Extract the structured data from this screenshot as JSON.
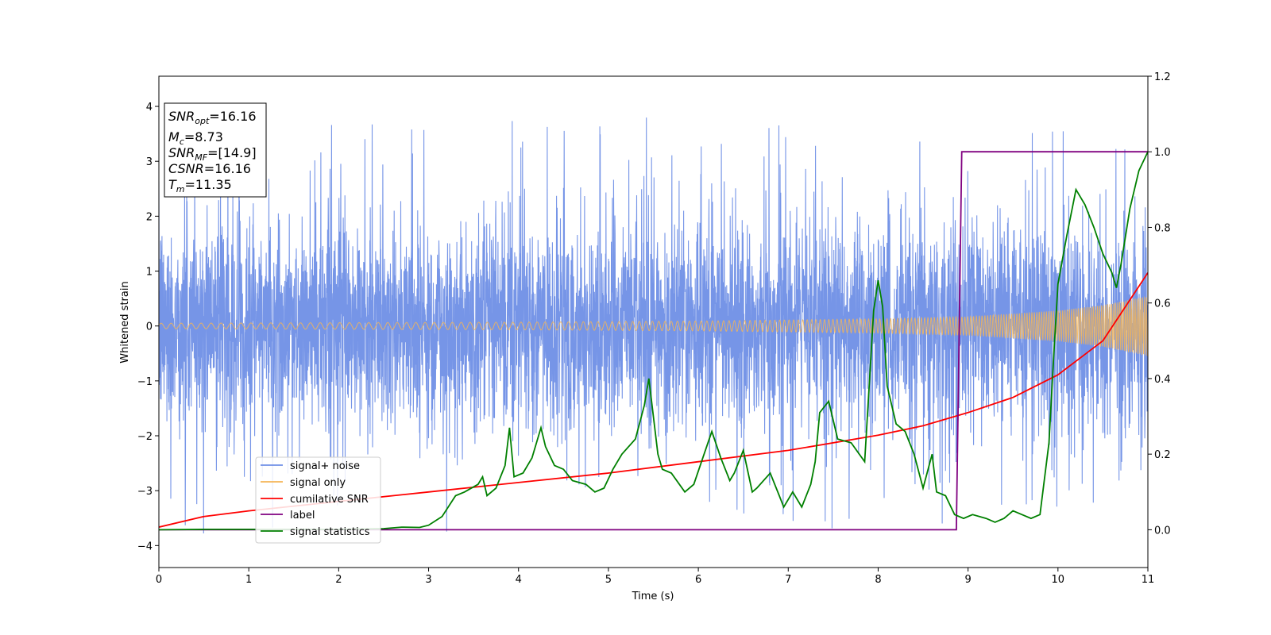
{
  "chart_data": {
    "type": "line",
    "xlabel": "Time (s)",
    "ylabel": "Whitened strain",
    "xlim": [
      0,
      11
    ],
    "ylim_left": [
      -4.4,
      4.55
    ],
    "ylim_right": [
      -0.1,
      1.2
    ],
    "x_ticks": [
      0,
      1,
      2,
      3,
      4,
      5,
      6,
      7,
      8,
      9,
      10,
      11
    ],
    "y_left_ticks": [
      -4,
      -3,
      -2,
      -1,
      0,
      1,
      2,
      3,
      4
    ],
    "y_right_ticks": [
      0.0,
      0.2,
      0.4,
      0.6,
      0.8,
      1.0,
      1.2
    ],
    "legend_position": "lower-left",
    "info_box": {
      "line1": {
        "sym": "SNR",
        "sub": "opt",
        "value": "=16.16"
      },
      "line2": {
        "sym": "M",
        "sub": "c",
        "value": "=8.73"
      },
      "line3": {
        "sym": "SNR",
        "sub": "MF",
        "value": "=[14.9]"
      },
      "line4": {
        "sym": "CSNR",
        "sub": "",
        "value": "=16.16"
      },
      "line5": {
        "sym": "T",
        "sub": "m",
        "value": "=11.35"
      }
    },
    "series": [
      {
        "name": "signal+ noise",
        "axis": "left",
        "color": "#6f8fe6",
        "description_stats": {
          "band_low": -1.6,
          "band_high": 1.6,
          "peak_max": 4.2,
          "peak_min": -3.95
        }
      },
      {
        "name": "signal only",
        "axis": "left",
        "color": "#f5b556",
        "envelope": {
          "x": [
            0,
            2,
            4,
            6,
            8,
            9,
            10,
            10.5,
            11
          ],
          "amp": [
            0.05,
            0.06,
            0.07,
            0.09,
            0.13,
            0.17,
            0.28,
            0.38,
            0.55
          ]
        }
      },
      {
        "name": "cumilative SNR",
        "axis": "right",
        "color": "#ff0000",
        "x": [
          0,
          0.5,
          1,
          2,
          3,
          4,
          5,
          6,
          7,
          8,
          8.5,
          9,
          9.5,
          10,
          10.5,
          11
        ],
        "y": [
          0.007,
          0.035,
          0.05,
          0.075,
          0.1,
          0.125,
          0.15,
          0.18,
          0.21,
          0.25,
          0.275,
          0.31,
          0.35,
          0.41,
          0.5,
          0.68
        ]
      },
      {
        "name": "label",
        "axis": "right",
        "color": "#800080",
        "x": [
          0,
          8.87,
          8.93,
          11
        ],
        "y": [
          0,
          0,
          1,
          1
        ]
      },
      {
        "name": "signal statistics",
        "axis": "right",
        "color": "#008000",
        "x": [
          0,
          0.5,
          1,
          1.5,
          2,
          2.5,
          2.7,
          2.9,
          3.0,
          3.15,
          3.3,
          3.4,
          3.55,
          3.6,
          3.65,
          3.75,
          3.85,
          3.9,
          3.95,
          4.05,
          4.15,
          4.25,
          4.3,
          4.4,
          4.5,
          4.6,
          4.75,
          4.85,
          4.95,
          5.05,
          5.15,
          5.3,
          5.4,
          5.45,
          5.55,
          5.6,
          5.7,
          5.85,
          5.95,
          6.05,
          6.15,
          6.25,
          6.35,
          6.4,
          6.5,
          6.6,
          6.65,
          6.8,
          6.9,
          6.95,
          7.05,
          7.15,
          7.25,
          7.3,
          7.35,
          7.45,
          7.55,
          7.7,
          7.85,
          7.95,
          8.0,
          8.05,
          8.1,
          8.2,
          8.3,
          8.4,
          8.5,
          8.6,
          8.65,
          8.75,
          8.85,
          8.95,
          9.05,
          9.2,
          9.3,
          9.4,
          9.5,
          9.6,
          9.7,
          9.8,
          9.9,
          9.95,
          10.0,
          10.1,
          10.2,
          10.3,
          10.4,
          10.5,
          10.6,
          10.65,
          10.7,
          10.8,
          10.9,
          11.0
        ],
        "y": [
          0,
          0.001,
          0.001,
          0.001,
          0.001,
          0.003,
          0.007,
          0.006,
          0.012,
          0.035,
          0.09,
          0.1,
          0.12,
          0.14,
          0.09,
          0.11,
          0.17,
          0.27,
          0.14,
          0.15,
          0.19,
          0.27,
          0.22,
          0.17,
          0.16,
          0.13,
          0.12,
          0.1,
          0.11,
          0.16,
          0.2,
          0.24,
          0.33,
          0.4,
          0.2,
          0.16,
          0.15,
          0.1,
          0.12,
          0.19,
          0.26,
          0.19,
          0.13,
          0.15,
          0.21,
          0.1,
          0.11,
          0.15,
          0.09,
          0.06,
          0.1,
          0.06,
          0.12,
          0.18,
          0.31,
          0.34,
          0.24,
          0.23,
          0.18,
          0.58,
          0.66,
          0.59,
          0.38,
          0.28,
          0.26,
          0.2,
          0.11,
          0.2,
          0.1,
          0.09,
          0.04,
          0.03,
          0.04,
          0.03,
          0.02,
          0.03,
          0.05,
          0.04,
          0.03,
          0.04,
          0.23,
          0.45,
          0.65,
          0.78,
          0.9,
          0.86,
          0.8,
          0.73,
          0.68,
          0.64,
          0.7,
          0.85,
          0.95,
          1.0
        ]
      }
    ]
  }
}
